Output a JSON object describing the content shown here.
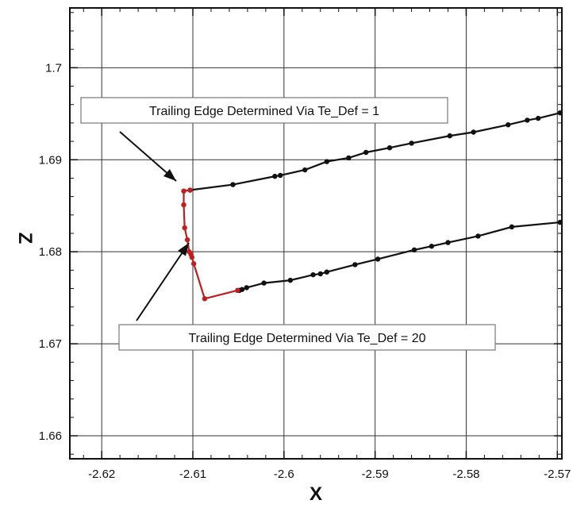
{
  "chart_data": {
    "type": "line",
    "title": "",
    "xlabel": "X",
    "ylabel": "Z",
    "xlim": [
      -2.6235,
      -2.5695
    ],
    "ylim": [
      1.6575,
      1.7065
    ],
    "xticks": [
      -2.62,
      -2.61,
      -2.6,
      -2.59,
      -2.58,
      -2.57
    ],
    "xtick_labels": [
      "-2.62",
      "-2.61",
      "-2.6",
      "-2.59",
      "-2.58",
      "-2.57"
    ],
    "yticks": [
      1.66,
      1.67,
      1.68,
      1.69,
      1.7
    ],
    "ytick_labels": [
      "1.66",
      "1.67",
      "1.68",
      "1.69",
      "1.7"
    ],
    "grid": true,
    "series": [
      {
        "color": "#111111",
        "x": [
          -2.6103,
          -2.6056,
          -2.601,
          -2.6004,
          -2.5977,
          -2.5953,
          -2.5929,
          -2.591,
          -2.5884,
          -2.586,
          -2.5818,
          -2.5792,
          -2.5754,
          -2.5733,
          -2.5721,
          -2.5697
        ],
        "y": [
          1.6867,
          1.6873,
          1.6882,
          1.6883,
          1.6889,
          1.6898,
          1.6902,
          1.6908,
          1.6913,
          1.6918,
          1.6926,
          1.693,
          1.6938,
          1.6943,
          1.6945,
          1.6951
        ]
      },
      {
        "color": "#111111",
        "x": [
          -2.6049,
          -2.6046,
          -2.6041,
          -2.6022,
          -2.5993,
          -2.5968,
          -2.596,
          -2.5953,
          -2.5922,
          -2.5897,
          -2.5857,
          -2.5838,
          -2.582,
          -2.5787,
          -2.575,
          -2.5697
        ],
        "y": [
          1.6758,
          1.6759,
          1.6761,
          1.6766,
          1.6769,
          1.6775,
          1.6776,
          1.6778,
          1.6786,
          1.6792,
          1.6802,
          1.6806,
          1.681,
          1.6817,
          1.6827,
          1.6832
        ]
      },
      {
        "color": "#c21e1e",
        "x": [
          -2.6103,
          -2.611,
          -2.611,
          -2.6109,
          -2.6106,
          -2.6104,
          -2.6102,
          -2.6101,
          -2.6099,
          -2.6087,
          -2.6051
        ],
        "y": [
          1.6867,
          1.6866,
          1.6851,
          1.6826,
          1.6813,
          1.68,
          1.6797,
          1.6794,
          1.6787,
          1.6749,
          1.6758
        ]
      }
    ],
    "annotations": [
      {
        "text": "Trailing Edge Determined Via Te_Def = 1"
      },
      {
        "text": "Trailing Edge Determined Via Te_Def = 20"
      }
    ]
  }
}
